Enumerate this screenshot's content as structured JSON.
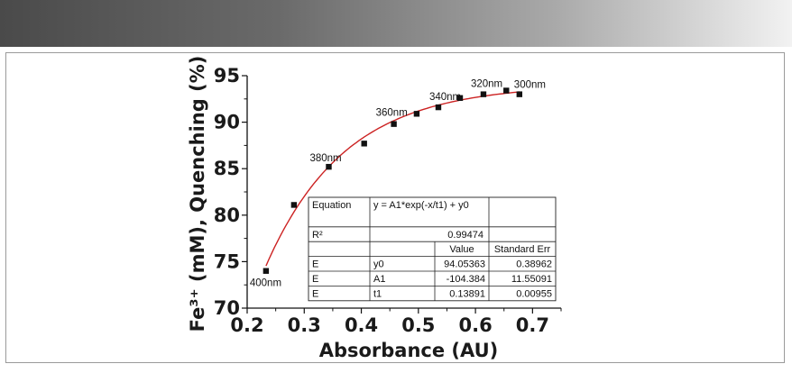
{
  "chart_data": {
    "type": "scatter",
    "xlabel": "Absorbance (AU)",
    "ylabel": "Fe³⁺ (mM), Quenching (%)",
    "xlim": [
      0.2,
      0.75
    ],
    "ylim": [
      70,
      95
    ],
    "x_ticks": [
      "0.2",
      "0.3",
      "0.4",
      "0.5",
      "0.6",
      "0.7"
    ],
    "y_ticks": [
      "70",
      "75",
      "80",
      "85",
      "90",
      "95"
    ],
    "grid": false,
    "marker": "square",
    "marker_color": "#111111",
    "points": [
      {
        "x": 0.233,
        "y": 74.0,
        "label": "400nm"
      },
      {
        "x": 0.282,
        "y": 81.1,
        "label": ""
      },
      {
        "x": 0.343,
        "y": 85.2,
        "label": "380nm"
      },
      {
        "x": 0.405,
        "y": 87.7,
        "label": ""
      },
      {
        "x": 0.457,
        "y": 89.8,
        "label": "360nm"
      },
      {
        "x": 0.497,
        "y": 90.9,
        "label": ""
      },
      {
        "x": 0.535,
        "y": 91.6,
        "label": "340nm"
      },
      {
        "x": 0.573,
        "y": 92.6,
        "label": ""
      },
      {
        "x": 0.614,
        "y": 93.0,
        "label": "320nm"
      },
      {
        "x": 0.654,
        "y": 93.4,
        "label": ""
      },
      {
        "x": 0.677,
        "y": 93.0,
        "label": "300nm"
      }
    ],
    "fit": {
      "model": "y = A1*exp(-x/t1) + y0",
      "params": {
        "y0": 94.05363,
        "A1": -104.384,
        "t1": 0.13891
      },
      "color": "#cc2222",
      "x_start": 0.233,
      "x_end": 0.677
    },
    "fit_table": {
      "rows": [
        [
          "Equation",
          "y = A1*exp(-x/t1) + y0",
          ""
        ],
        [
          "R²",
          "0.99474",
          ""
        ],
        [
          "",
          "Value",
          "Standard Err"
        ],
        [
          "E",
          "y0",
          "94.05363",
          "0.38962"
        ],
        [
          "E",
          "A1",
          "-104.384",
          "11.55091"
        ],
        [
          "E",
          "t1",
          "0.13891",
          "0.00955"
        ]
      ]
    }
  }
}
